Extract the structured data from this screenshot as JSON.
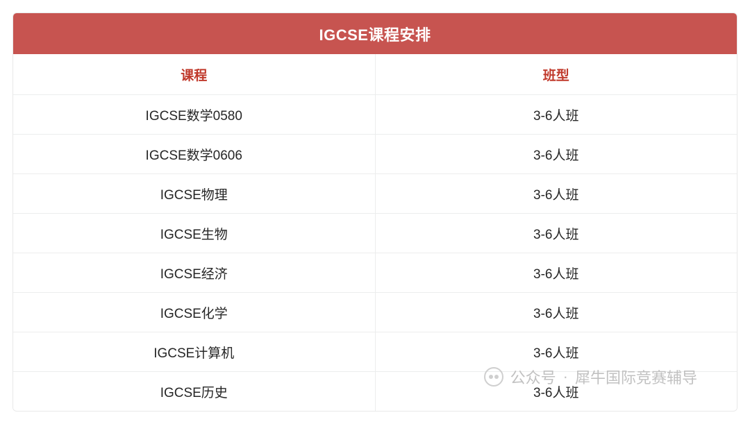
{
  "table": {
    "title": "IGCSE课程安排",
    "columns": {
      "course": "课程",
      "classType": "班型"
    },
    "rows": [
      {
        "course": "IGCSE数学0580",
        "classType": "3-6人班"
      },
      {
        "course": "IGCSE数学0606",
        "classType": "3-6人班"
      },
      {
        "course": "IGCSE物理",
        "classType": "3-6人班"
      },
      {
        "course": "IGCSE生物",
        "classType": "3-6人班"
      },
      {
        "course": "IGCSE经济",
        "classType": "3-6人班"
      },
      {
        "course": "IGCSE化学",
        "classType": "3-6人班"
      },
      {
        "course": "IGCSE计算机",
        "classType": "3-6人班"
      },
      {
        "course": "IGCSE历史",
        "classType": "3-6人班"
      }
    ],
    "header_bg": "#c75450",
    "header_text_color": "#ffffff",
    "column_header_color": "#c0392b",
    "cell_text_color": "#262626",
    "border_color": "#eceded",
    "title_fontsize": 22,
    "header_fontsize": 19,
    "cell_fontsize": 19,
    "col_course_width_pct": 55,
    "col_class_width_pct": 45
  },
  "watermark": {
    "prefix": "公众号",
    "separator": "·",
    "account": "犀牛国际竞赛辅导",
    "text_color": "#b9b9b9"
  }
}
